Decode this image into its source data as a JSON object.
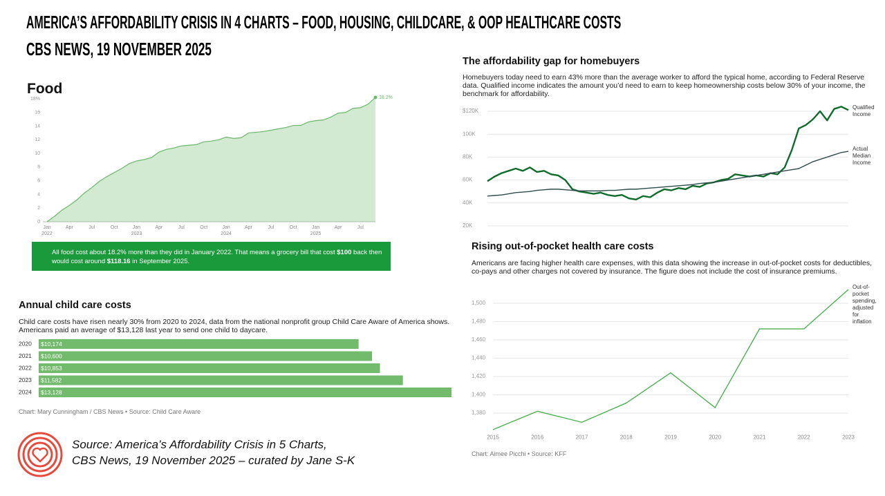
{
  "header": {
    "title": "AMERICA’S AFFORDABILITY CRISIS IN 4 CHARTS – FOOD, HOUSING, CHILDCARE, & OOP HEALTHCARE COSTS",
    "subtitle": "CBS NEWS, 19 NOVEMBER 2025"
  },
  "chart_data": [
    {
      "type": "area",
      "title": "Food",
      "categories": [
        "2022-01",
        "2022-02",
        "2022-03",
        "2022-04",
        "2022-05",
        "2022-06",
        "2022-07",
        "2022-08",
        "2022-09",
        "2022-10",
        "2022-11",
        "2022-12",
        "2023-01",
        "2023-02",
        "2023-03",
        "2023-04",
        "2023-05",
        "2023-06",
        "2023-07",
        "2023-08",
        "2023-09",
        "2023-10",
        "2023-11",
        "2023-12",
        "2024-01",
        "2024-02",
        "2024-03",
        "2024-04",
        "2024-05",
        "2024-06",
        "2024-07",
        "2024-08",
        "2024-09",
        "2024-10",
        "2024-11",
        "2024-12",
        "2025-01",
        "2025-02",
        "2025-03",
        "2025-04",
        "2025-05",
        "2025-06",
        "2025-07",
        "2025-08",
        "2025-09"
      ],
      "values": [
        0,
        0.8,
        1.7,
        2.4,
        3.2,
        4.2,
        5.0,
        5.9,
        6.6,
        7.2,
        7.8,
        8.5,
        8.9,
        9.1,
        9.4,
        10.2,
        10.6,
        10.8,
        11.1,
        11.2,
        11.3,
        11.7,
        11.8,
        12.0,
        12.4,
        12.2,
        12.3,
        13.0,
        13.1,
        13.2,
        13.4,
        13.6,
        13.8,
        14.1,
        14.1,
        14.6,
        14.8,
        14.9,
        15.3,
        15.9,
        16.0,
        16.6,
        16.7,
        17.2,
        18.2
      ],
      "value_labels": [
        null,
        null,
        null,
        null,
        null,
        null,
        null,
        null,
        null,
        null,
        null,
        null,
        null,
        null,
        null,
        null,
        null,
        null,
        null,
        null,
        null,
        null,
        null,
        null,
        null,
        null,
        null,
        null,
        null,
        null,
        null,
        null,
        null,
        null,
        null,
        null,
        null,
        null,
        null,
        null,
        null,
        null,
        null,
        null,
        "18.2%"
      ],
      "color": "#6ab86a",
      "ylim": [
        0,
        18
      ],
      "yticks": [
        0,
        2,
        4,
        6,
        8,
        10,
        12,
        14,
        16,
        {
          "value": 18,
          "label": "18%"
        }
      ],
      "xticks": [
        {
          "value": "2022-01",
          "label": "Jan",
          "year": "2022"
        },
        {
          "value": "2022-04",
          "label": "Apr"
        },
        {
          "value": "2022-07",
          "label": "Jul"
        },
        {
          "value": "2022-10",
          "label": "Oct"
        },
        {
          "value": "2023-01",
          "label": "Jan",
          "year": "2023"
        },
        {
          "value": "2023-04",
          "label": "Apr"
        },
        {
          "value": "2023-07",
          "label": "Jul"
        },
        {
          "value": "2023-10",
          "label": "Oct"
        },
        {
          "value": "2024-01",
          "label": "Jan",
          "year": "2024"
        },
        {
          "value": "2024-04",
          "label": "Apr"
        },
        {
          "value": "2024-07",
          "label": "Jul"
        },
        {
          "value": "2024-10",
          "label": "Oct"
        },
        {
          "value": "2025-01",
          "label": "Jan",
          "year": "2025"
        },
        {
          "value": "2025-04",
          "label": "Apr"
        },
        {
          "value": "2025-07",
          "label": "Jul"
        }
      ],
      "note": [
        {
          "text": "All food cost about 18.2% more than they did in January 2022. That means a grocery bill that cost "
        },
        {
          "text": "$100",
          "bold": true
        },
        {
          "text": " back then would cost around "
        },
        {
          "text": "$118.16",
          "bold": true
        },
        {
          "text": " in September 2025."
        }
      ]
    },
    {
      "type": "line",
      "title": "The affordability gap for homebuyers",
      "subtitle": "Homebuyers today need to earn 43% more than the average worker to afford the typical home, according to Federal Reserve data. Qualified income indicates the amount you’d need to earn to keep homeownership costs below 30% of your income, the benchmark for affordability.",
      "series": [
        {
          "name": "Qualified Income",
          "color": "#0f6b2a",
          "values": [
            59000,
            63000,
            66000,
            68000,
            70000,
            68000,
            71000,
            67000,
            68000,
            65000,
            64000,
            60000,
            52000,
            50000,
            49000,
            48000,
            49000,
            47000,
            46000,
            47000,
            44000,
            43000,
            46000,
            45000,
            49000,
            52000,
            51000,
            53000,
            52000,
            55000,
            54000,
            57000,
            58000,
            60000,
            61000,
            65000,
            64000,
            63000,
            64000,
            63000,
            66000,
            65000,
            71000,
            86000,
            105000,
            108000,
            113000,
            120000,
            112000,
            122000,
            124000,
            121000
          ]
        },
        {
          "name": "Actual Median Income",
          "color": "#2f4a4a",
          "values": [
            46000,
            46500,
            47000,
            48000,
            49000,
            49500,
            50000,
            51000,
            51500,
            52000,
            52000,
            51500,
            51000,
            50500,
            50500,
            50500,
            50500,
            51000,
            51000,
            51500,
            52000,
            52000,
            52500,
            53000,
            53500,
            54000,
            54500,
            55000,
            55500,
            56000,
            57000,
            57500,
            58000,
            59000,
            60000,
            61000,
            62000,
            63000,
            64000,
            65000,
            66000,
            67000,
            68000,
            69000,
            70000,
            73000,
            76000,
            78000,
            80000,
            82000,
            84000,
            85000
          ]
        }
      ],
      "ylim": [
        20000,
        120000
      ],
      "yticks": [
        {
          "value": 20000,
          "label": "20K"
        },
        {
          "value": 40000,
          "label": "40K"
        },
        {
          "value": 60000,
          "label": "60K"
        },
        {
          "value": 80000,
          "label": "80K"
        },
        {
          "value": 100000,
          "label": "100K"
        },
        {
          "value": 120000,
          "label": "$120K"
        }
      ],
      "grid": true
    },
    {
      "type": "hbar",
      "title": "Annual child care costs",
      "subtitle": "Child care costs have risen nearly 30% from 2020 to 2024, data from the national nonprofit group Child Care Aware of America shows.  Americans paid an average of $13,128 last year to send one child to daycare.",
      "categories": [
        "2020",
        "2021",
        "2022",
        "2023",
        "2024"
      ],
      "values": [
        10174,
        10600,
        10853,
        11582,
        13128
      ],
      "value_labels": [
        "$10,174",
        "$10,600",
        "$10,853",
        "$11,582",
        "$13,128"
      ],
      "color": "#72bb6c",
      "source": "Chart: Mary Cunningham / CBS News • Source: Child Care Aware"
    },
    {
      "type": "line",
      "title": "Rising out-of-pocket health care costs",
      "subtitle": "Americans are facing higher health care expenses, with this data showing the increase in out-of-pocket costs for deductibles, co-pays and other charges not covered by insurance. The figure does not include the cost of insurance premiums.",
      "x": [
        2015,
        2016,
        2017,
        2018,
        2019,
        2020,
        2021,
        2022,
        2023
      ],
      "xlim": [
        2015,
        2023
      ],
      "xticks": [
        2015,
        2016,
        2017,
        2018,
        2019,
        2020,
        2021,
        2022,
        2023
      ],
      "series": [
        {
          "name": "Out-of-pocket spending, adjusted for inflation",
          "color": "#4caf50",
          "values": [
            1362,
            1382,
            1370,
            1391,
            1424,
            1386,
            1472,
            1472,
            1515
          ]
        }
      ],
      "ylim": [
        1360,
        1520
      ],
      "yticks": [
        {
          "value": 1380,
          "label": "1,380"
        },
        {
          "value": 1400,
          "label": "1,400"
        },
        {
          "value": 1420,
          "label": "1,420"
        },
        {
          "value": 1440,
          "label": "1,440"
        },
        {
          "value": 1460,
          "label": "1,460"
        },
        {
          "value": 1480,
          "label": "1,480"
        },
        {
          "value": 1500,
          "label": "1,500"
        }
      ],
      "grid": true,
      "source": "Chart: Aimee Picchi • Source: KFF"
    }
  ],
  "footer": {
    "source": [
      "Source: America’s Affordability Crisis in 5 Charts,",
      "CBS News, 19 November 2025 – curated by Jane S-K"
    ]
  }
}
